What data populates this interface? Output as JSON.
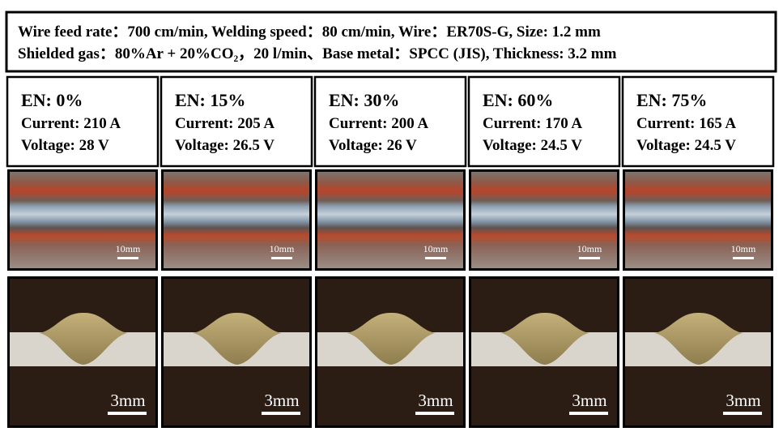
{
  "header": {
    "lines": [
      "Wire feed rate：700 cm/min, Welding speed：80 cm/min, Wire：ER70S-G, Size: 1.2 mm",
      "Shielded gas：80%Ar + 20%CO₂，20 l/min、Base metal：SPCC (JIS), Thickness: 3.2 mm"
    ]
  },
  "columns": [
    {
      "en": "EN: 0%",
      "current": "Current: 210 A",
      "voltage": "Voltage: 28 V",
      "surface_scale": "10mm",
      "section_scale": "3mm"
    },
    {
      "en": "EN: 15%",
      "current": "Current: 205 A",
      "voltage": "Voltage: 26.5 V",
      "surface_scale": "10mm",
      "section_scale": "3mm"
    },
    {
      "en": "EN: 30%",
      "current": "Current: 200 A",
      "voltage": "Voltage: 26 V",
      "surface_scale": "10mm",
      "section_scale": "3mm"
    },
    {
      "en": "EN: 60%",
      "current": "Current: 170 A",
      "voltage": "Voltage: 24.5 V",
      "surface_scale": "10mm",
      "section_scale": "3mm"
    },
    {
      "en": "EN: 75%",
      "current": "Current: 165 A",
      "voltage": "Voltage: 24.5 V",
      "surface_scale": "10mm",
      "section_scale": "3mm"
    }
  ]
}
